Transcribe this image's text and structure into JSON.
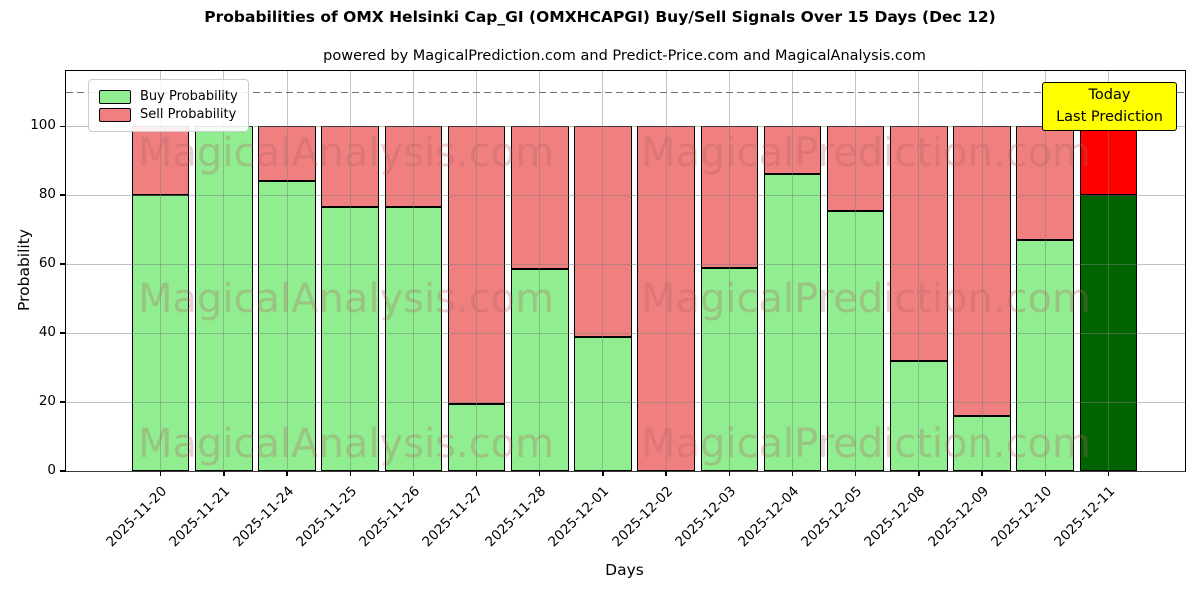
{
  "chart_data": {
    "type": "bar",
    "stacked": true,
    "title": "Probabilities of OMX Helsinki Cap_GI (OMXHCAPGI) Buy/Sell Signals Over 15 Days (Dec 12)",
    "subtitle": "powered by MagicalPrediction.com and Predict-Price.com and MagicalAnalysis.com",
    "xlabel": "Days",
    "ylabel": "Probability",
    "categories": [
      "2025-11-20",
      "2025-11-21",
      "2025-11-24",
      "2025-11-25",
      "2025-11-26",
      "2025-11-27",
      "2025-11-28",
      "2025-12-01",
      "2025-12-02",
      "2025-12-03",
      "2025-12-04",
      "2025-12-05",
      "2025-12-08",
      "2025-12-09",
      "2025-12-10",
      "2025-12-11"
    ],
    "series": [
      {
        "name": "Buy Probability",
        "color": "#90ee90",
        "today_color": "#006400",
        "values": [
          80,
          100,
          84,
          76.5,
          76.5,
          19.5,
          58.5,
          39,
          0,
          59,
          86,
          75.5,
          32,
          16,
          67,
          80
        ]
      },
      {
        "name": "Sell Probability",
        "color": "#f08080",
        "today_color": "#ff0000",
        "values": [
          20,
          0,
          16,
          23.5,
          23.5,
          80.5,
          41.5,
          61,
          100,
          41,
          14,
          24.5,
          68,
          84,
          33,
          20
        ]
      }
    ],
    "yticks": [
      0,
      20,
      40,
      60,
      80,
      100
    ],
    "ylim": [
      0,
      116
    ],
    "dashed_line_y": 110,
    "grid": true,
    "legend_position": "upper left",
    "today_index": 15,
    "annotation": {
      "lines": [
        "Today",
        "Last Prediction"
      ],
      "bg_color": "#ffff00"
    },
    "watermarks": [
      "MagicalAnalysis.com",
      "MagicalPrediction.com"
    ],
    "edge_color": "#000000",
    "grid_color": "#b0b0b0"
  }
}
